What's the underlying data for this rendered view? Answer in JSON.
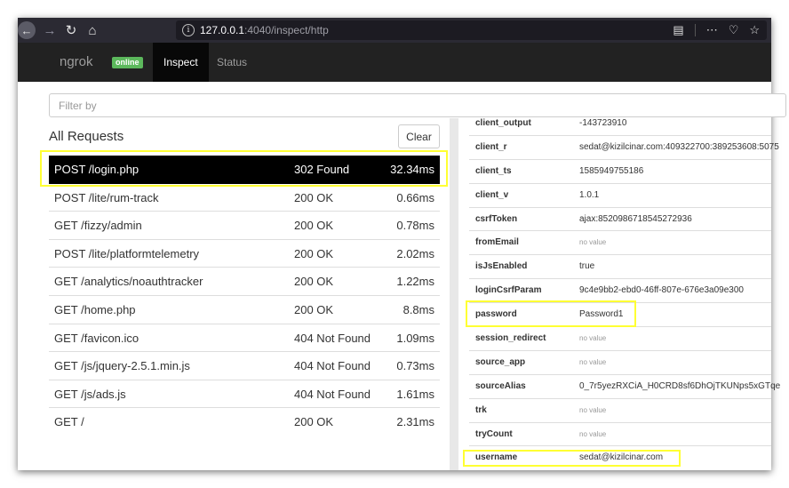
{
  "browser": {
    "url_host": "127.0.0.1",
    "url_rest": ":4040/inspect/http",
    "icons": [
      "back-icon",
      "forward-icon",
      "reload-icon",
      "home-icon",
      "info-icon",
      "reader-view-icon",
      "more-icon",
      "pocket-icon",
      "bookmark-star-icon"
    ]
  },
  "nav": {
    "brand": "ngrok",
    "badge": "online",
    "tabs": [
      "Inspect",
      "Status"
    ]
  },
  "filter": {
    "placeholder": "Filter by"
  },
  "requests": {
    "title": "All Requests",
    "clear_label": "Clear",
    "rows": [
      {
        "path": "POST /login.php",
        "status": "302 Found",
        "duration": "32.34ms"
      },
      {
        "path": "POST /lite/rum-track",
        "status": "200 OK",
        "duration": "0.66ms"
      },
      {
        "path": "GET /fizzy/admin",
        "status": "200 OK",
        "duration": "0.78ms"
      },
      {
        "path": "POST /lite/platformtelemetry",
        "status": "200 OK",
        "duration": "2.02ms"
      },
      {
        "path": "GET /analytics/noauthtracker",
        "status": "200 OK",
        "duration": "1.22ms"
      },
      {
        "path": "GET /home.php",
        "status": "200 OK",
        "duration": "8.8ms"
      },
      {
        "path": "GET /favicon.ico",
        "status": "404 Not Found",
        "duration": "1.09ms"
      },
      {
        "path": "GET /js/jquery-2.5.1.min.js",
        "status": "404 Not Found",
        "duration": "0.73ms"
      },
      {
        "path": "GET /js/ads.js",
        "status": "404 Not Found",
        "duration": "1.61ms"
      },
      {
        "path": "GET /",
        "status": "200 OK",
        "duration": "2.31ms"
      }
    ]
  },
  "params": {
    "rows": [
      {
        "key": "client_output",
        "value": "-143723910"
      },
      {
        "key": "client_r",
        "value": "sedat@kizilcinar.com:409322700:389253608:5075"
      },
      {
        "key": "client_ts",
        "value": "1585949755186"
      },
      {
        "key": "client_v",
        "value": "1.0.1"
      },
      {
        "key": "csrfToken",
        "value": "ajax:8520986718545272936"
      },
      {
        "key": "fromEmail",
        "value": "no value"
      },
      {
        "key": "isJsEnabled",
        "value": "true"
      },
      {
        "key": "loginCsrfParam",
        "value": "9c4e9bb2-ebd0-46ff-807e-676e3a09e300"
      },
      {
        "key": "password",
        "value": "Password1"
      },
      {
        "key": "session_redirect",
        "value": "no value"
      },
      {
        "key": "source_app",
        "value": "no value"
      },
      {
        "key": "sourceAlias",
        "value": "0_7r5yezRXCiA_H0CRD8sf6DhOjTKUNps5xGTqe"
      },
      {
        "key": "trk",
        "value": "no value"
      },
      {
        "key": "tryCount",
        "value": "no value"
      },
      {
        "key": "username",
        "value": "sedat@kizilcinar.com"
      }
    ]
  },
  "colors": {
    "highlight": "#ffff33",
    "badge": "#5cb85c",
    "navbar": "#222222",
    "selected_row": "#000000"
  }
}
